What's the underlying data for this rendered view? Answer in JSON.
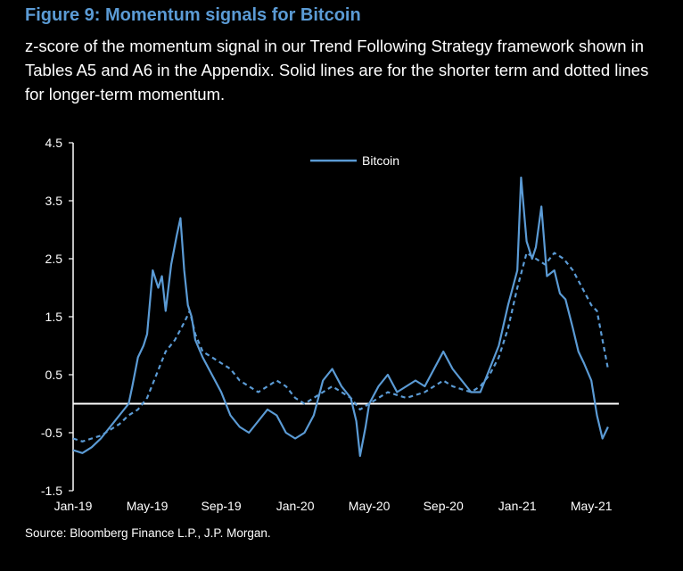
{
  "figure": {
    "title": "Figure 9: Momentum signals for Bitcoin",
    "subtitle": "z-score of the momentum signal in our Trend Following Strategy framework shown in Tables A5 and A6 in the Appendix. Solid lines are for the shorter term and dotted lines for longer-term momentum.",
    "source": "Source: Bloomberg Finance L.P., J.P. Morgan."
  },
  "colors": {
    "background": "#000000",
    "series": "#5b9bd5",
    "text": "#ffffff",
    "title": "#5b9bd5"
  },
  "chart_data": {
    "type": "line",
    "title": "Figure 9: Momentum signals for Bitcoin",
    "xlabel": "",
    "ylabel": "",
    "xlim": [
      "2019-01",
      "2021-06"
    ],
    "ylim": [
      -1.5,
      4.5
    ],
    "yticks": [
      4.5,
      3.5,
      2.5,
      1.5,
      0.5,
      -0.5,
      -1.5
    ],
    "ytick_labels": [
      "4.5",
      "3.5",
      "2.5",
      "1.5",
      "0.5",
      "-0.5",
      "-1.5"
    ],
    "xticks": [
      "Jan-19",
      "May-19",
      "Sep-19",
      "Jan-20",
      "May-20",
      "Sep-20",
      "Jan-21",
      "May-21"
    ],
    "xtick_months": [
      0,
      4,
      8,
      12,
      16,
      20,
      24,
      28
    ],
    "grid": false,
    "reference_line": 0,
    "legend": {
      "position": "top-center",
      "entries": [
        "Bitcoin"
      ]
    },
    "series": [
      {
        "name": "Bitcoin",
        "style": "solid",
        "month": [
          0,
          0.5,
          1,
          1.5,
          2,
          2.5,
          3,
          3.2,
          3.5,
          3.8,
          4,
          4.3,
          4.6,
          4.8,
          5,
          5.3,
          5.6,
          5.8,
          6,
          6.2,
          6.4,
          6.6,
          7,
          7.5,
          8,
          8.5,
          9,
          9.5,
          10,
          10.5,
          11,
          11.5,
          12,
          12.5,
          13,
          13.5,
          14,
          14.5,
          15,
          15.3,
          15.5,
          15.8,
          16,
          16.5,
          17,
          17.5,
          18,
          18.5,
          19,
          19.5,
          20,
          20.5,
          21,
          21.5,
          22,
          22.5,
          23,
          23.5,
          24,
          24.2,
          24.5,
          24.8,
          25,
          25.3,
          25.6,
          26,
          26.3,
          26.6,
          27,
          27.3,
          27.6,
          28,
          28.3,
          28.6,
          28.9
        ],
        "values": [
          -0.8,
          -0.85,
          -0.75,
          -0.6,
          -0.4,
          -0.2,
          0.0,
          0.3,
          0.8,
          1.0,
          1.2,
          2.3,
          2.0,
          2.2,
          1.6,
          2.4,
          2.9,
          3.2,
          2.3,
          1.7,
          1.5,
          1.1,
          0.8,
          0.5,
          0.2,
          -0.2,
          -0.4,
          -0.5,
          -0.3,
          -0.1,
          -0.2,
          -0.5,
          -0.6,
          -0.5,
          -0.2,
          0.4,
          0.6,
          0.3,
          0.1,
          -0.3,
          -0.9,
          -0.4,
          0.0,
          0.3,
          0.5,
          0.2,
          0.3,
          0.4,
          0.3,
          0.6,
          0.9,
          0.6,
          0.4,
          0.2,
          0.2,
          0.6,
          1.0,
          1.7,
          2.3,
          3.9,
          2.8,
          2.5,
          2.7,
          3.4,
          2.2,
          2.3,
          1.9,
          1.8,
          1.3,
          0.9,
          0.7,
          0.4,
          -0.2,
          -0.6,
          -0.4
        ]
      },
      {
        "name": "",
        "style": "dotted",
        "month": [
          0,
          0.5,
          1,
          1.5,
          2,
          2.5,
          3,
          3.5,
          4,
          4.5,
          5,
          5.5,
          6,
          6.3,
          6.6,
          7,
          7.5,
          8,
          8.5,
          9,
          9.5,
          10,
          10.5,
          11,
          11.5,
          12,
          12.5,
          13,
          13.5,
          14,
          14.5,
          15,
          15.5,
          16,
          16.5,
          17,
          17.5,
          18,
          18.5,
          19,
          19.5,
          20,
          20.5,
          21,
          21.5,
          22,
          22.5,
          23,
          23.5,
          24,
          24.5,
          25,
          25.5,
          26,
          26.5,
          27,
          27.5,
          28,
          28.3,
          28.6,
          28.9
        ],
        "values": [
          -0.6,
          -0.65,
          -0.6,
          -0.55,
          -0.45,
          -0.35,
          -0.2,
          -0.1,
          0.1,
          0.5,
          0.9,
          1.1,
          1.4,
          1.6,
          1.2,
          0.9,
          0.8,
          0.7,
          0.6,
          0.4,
          0.3,
          0.2,
          0.3,
          0.4,
          0.3,
          0.1,
          0.0,
          0.1,
          0.2,
          0.3,
          0.2,
          0.1,
          -0.1,
          0.0,
          0.1,
          0.2,
          0.15,
          0.1,
          0.15,
          0.2,
          0.3,
          0.4,
          0.3,
          0.25,
          0.2,
          0.3,
          0.5,
          0.8,
          1.3,
          2.0,
          2.6,
          2.5,
          2.4,
          2.6,
          2.5,
          2.3,
          2.0,
          1.7,
          1.6,
          1.1,
          0.6
        ]
      }
    ]
  }
}
